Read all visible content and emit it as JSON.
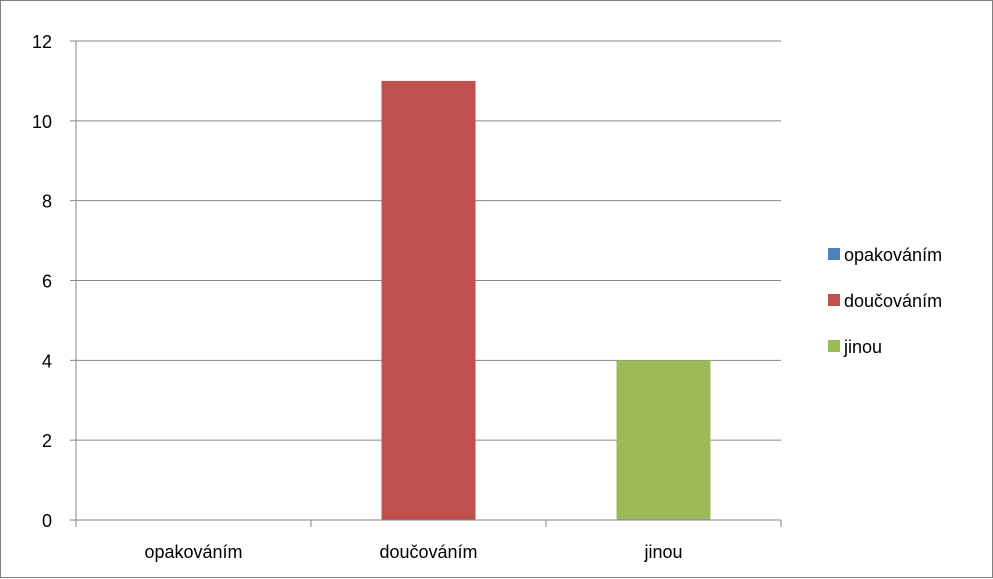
{
  "chart_data": {
    "type": "bar",
    "categories": [
      "opakováním",
      "doučováním",
      "jinou"
    ],
    "series": [
      {
        "name": "opakováním",
        "color": "#4f81bd",
        "values": [
          0,
          null,
          null
        ]
      },
      {
        "name": "doučováním",
        "color": "#c0504d",
        "values": [
          null,
          11,
          null
        ]
      },
      {
        "name": "jinou",
        "color": "#9bbb59",
        "values": [
          null,
          null,
          4
        ]
      }
    ],
    "ylim": [
      0,
      12
    ],
    "yticks": [
      0,
      2,
      4,
      6,
      8,
      10,
      12
    ],
    "grid": true,
    "legend_position": "right"
  }
}
